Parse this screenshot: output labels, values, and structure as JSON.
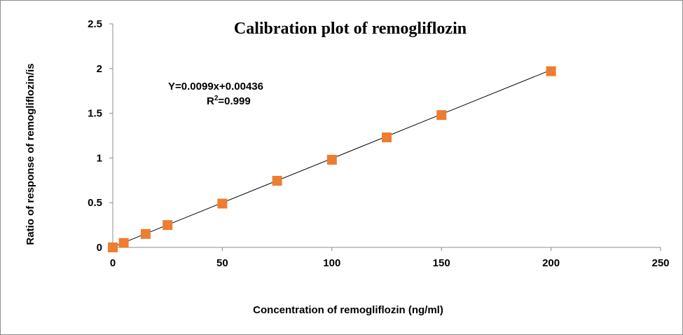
{
  "chart_data": {
    "type": "scatter",
    "title": "Calibration  plot of remogliflozin",
    "xlabel": "Concentration of remogliflozin (ng/ml)",
    "ylabel": "Ratio of response of remogliflozin/is",
    "xlim": [
      0,
      250
    ],
    "ylim": [
      0,
      2.5
    ],
    "x_ticks": [
      "0",
      "50",
      "100",
      "150",
      "200",
      "250"
    ],
    "y_ticks": [
      "0",
      "0.5",
      "1",
      "1.5",
      "2",
      "2.5"
    ],
    "grid": false,
    "legend": "none",
    "series": [
      {
        "x": [
          0,
          5,
          15,
          25,
          50,
          75,
          100,
          125,
          150,
          200
        ],
        "y": [
          0.0,
          0.05,
          0.15,
          0.25,
          0.49,
          0.745,
          0.98,
          1.23,
          1.48,
          1.97
        ],
        "marker": "square",
        "color": "#ED7D31"
      }
    ],
    "trendline": {
      "slope": 0.0099,
      "intercept": 0.00436,
      "x_range": [
        0,
        200
      ],
      "color": "#000000"
    },
    "annotations": {
      "equation": "Y=0.0099x+0.00436",
      "r_prefix": "R",
      "r_sup": "2",
      "r_value": "=0.999"
    }
  }
}
